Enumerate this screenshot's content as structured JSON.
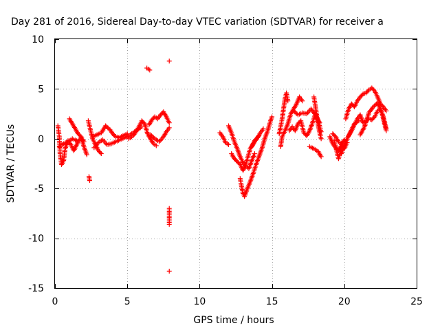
{
  "chart_data": {
    "type": "scatter",
    "title": "Day 281 of 2016, Sidereal Day-to-day VTEC variation (SDTVAR) for receiver a",
    "xlabel": "GPS time / hours",
    "ylabel": "SDTVAR / TECUs",
    "xlim": [
      0,
      25
    ],
    "ylim": [
      -15,
      10
    ],
    "xticks": [
      0,
      5,
      10,
      15,
      20,
      25
    ],
    "yticks": [
      -15,
      -10,
      -5,
      0,
      5,
      10
    ],
    "grid": true,
    "marker": "+",
    "color": "#ff0000",
    "series": [
      {
        "name": "SDTVAR",
        "segments": [
          [
            [
              0.2,
              1.3
            ],
            [
              0.3,
              0.2
            ],
            [
              0.35,
              -1.5
            ],
            [
              0.45,
              -2.6
            ],
            [
              0.6,
              -2.2
            ],
            [
              0.7,
              -1.0
            ],
            [
              0.9,
              -0.2
            ],
            [
              1.1,
              -0.6
            ],
            [
              1.3,
              -1.2
            ],
            [
              1.6,
              -0.3
            ],
            [
              1.8,
              0.1
            ],
            [
              2.0,
              -0.8
            ],
            [
              2.2,
              -1.6
            ]
          ],
          [
            [
              1.0,
              2.0
            ],
            [
              1.2,
              1.5
            ],
            [
              1.4,
              1.0
            ],
            [
              1.6,
              0.5
            ],
            [
              1.8,
              0.2
            ],
            [
              2.0,
              -0.3
            ]
          ],
          [
            [
              0.3,
              -0.8
            ],
            [
              0.6,
              -0.5
            ],
            [
              0.9,
              -0.3
            ],
            [
              1.2,
              0.0
            ],
            [
              1.5,
              -0.2
            ]
          ],
          [
            [
              2.3,
              1.8
            ],
            [
              2.4,
              1.2
            ],
            [
              2.5,
              0.6
            ],
            [
              2.6,
              0.0
            ],
            [
              2.8,
              -0.6
            ],
            [
              3.0,
              -1.2
            ],
            [
              3.2,
              -1.5
            ]
          ],
          [
            [
              2.6,
              0.2
            ],
            [
              2.9,
              0.4
            ],
            [
              3.2,
              0.6
            ],
            [
              3.5,
              1.3
            ],
            [
              3.8,
              0.9
            ],
            [
              4.1,
              0.3
            ],
            [
              4.4,
              0.1
            ],
            [
              4.7,
              0.3
            ],
            [
              5.0,
              0.5
            ]
          ],
          [
            [
              2.7,
              -0.9
            ],
            [
              3.0,
              -0.4
            ],
            [
              3.3,
              -0.1
            ],
            [
              3.6,
              -0.6
            ],
            [
              3.9,
              -0.5
            ],
            [
              4.2,
              -0.3
            ],
            [
              4.5,
              -0.1
            ],
            [
              4.8,
              0.1
            ],
            [
              5.1,
              0.3
            ],
            [
              5.4,
              0.6
            ],
            [
              5.7,
              0.9
            ],
            [
              6.0,
              1.2
            ]
          ],
          [
            [
              5.1,
              0.0
            ],
            [
              5.4,
              0.3
            ],
            [
              5.6,
              0.7
            ],
            [
              5.8,
              1.2
            ],
            [
              6.0,
              1.8
            ],
            [
              6.2,
              1.5
            ],
            [
              6.4,
              0.5
            ],
            [
              6.6,
              0.0
            ],
            [
              6.8,
              -0.5
            ],
            [
              7.0,
              -0.7
            ]
          ],
          [
            [
              6.5,
              1.4
            ],
            [
              6.7,
              1.9
            ],
            [
              6.9,
              2.2
            ],
            [
              7.1,
              2.0
            ],
            [
              7.3,
              2.4
            ],
            [
              7.5,
              2.7
            ],
            [
              7.7,
              2.2
            ],
            [
              7.9,
              1.6
            ]
          ],
          [
            [
              6.6,
              0.4
            ],
            [
              6.9,
              0.0
            ],
            [
              7.2,
              -0.3
            ],
            [
              7.5,
              0.2
            ],
            [
              7.7,
              0.7
            ],
            [
              7.9,
              1.1
            ]
          ],
          [
            [
              2.35,
              -3.8
            ],
            [
              2.4,
              -4.2
            ]
          ],
          [
            [
              6.35,
              7.1
            ],
            [
              6.45,
              7.0
            ],
            [
              6.55,
              6.9
            ]
          ],
          [
            [
              7.9,
              7.8
            ],
            [
              7.9,
              -7.0
            ],
            [
              7.9,
              -8.4
            ],
            [
              7.9,
              -8.6
            ],
            [
              7.9,
              -13.3
            ]
          ],
          [
            [
              11.4,
              0.6
            ],
            [
              11.6,
              0.2
            ],
            [
              11.8,
              -0.4
            ],
            [
              12.0,
              -0.6
            ]
          ],
          [
            [
              12.0,
              1.3
            ],
            [
              12.2,
              0.6
            ],
            [
              12.4,
              -0.3
            ],
            [
              12.6,
              -1.0
            ],
            [
              12.8,
              -1.8
            ],
            [
              13.0,
              -2.4
            ],
            [
              13.2,
              -2.8
            ],
            [
              13.4,
              -3.0
            ],
            [
              13.6,
              -2.2
            ],
            [
              13.8,
              -1.5
            ]
          ],
          [
            [
              12.2,
              -1.5
            ],
            [
              12.4,
              -2.0
            ],
            [
              12.6,
              -2.3
            ],
            [
              12.8,
              -2.6
            ],
            [
              13.0,
              -3.2
            ],
            [
              13.2,
              -2.5
            ],
            [
              13.5,
              -1.0
            ],
            [
              13.8,
              -0.2
            ],
            [
              14.1,
              0.3
            ]
          ],
          [
            [
              12.8,
              -4.0
            ],
            [
              12.9,
              -4.8
            ],
            [
              13.0,
              -5.5
            ],
            [
              13.1,
              -5.8
            ],
            [
              13.3,
              -5.0
            ],
            [
              13.5,
              -4.3
            ],
            [
              13.7,
              -3.5
            ],
            [
              13.9,
              -2.6
            ],
            [
              14.1,
              -1.8
            ],
            [
              14.3,
              -1.0
            ],
            [
              14.5,
              0.0
            ],
            [
              14.7,
              0.8
            ],
            [
              14.9,
              1.8
            ],
            [
              15.0,
              2.2
            ]
          ],
          [
            [
              13.6,
              -0.8
            ],
            [
              13.8,
              -0.3
            ],
            [
              14.0,
              0.1
            ],
            [
              14.2,
              0.6
            ],
            [
              14.4,
              1.0
            ]
          ],
          [
            [
              15.5,
              0.5
            ],
            [
              15.6,
              1.2
            ],
            [
              15.7,
              2.0
            ],
            [
              15.8,
              3.0
            ],
            [
              15.9,
              4.0
            ],
            [
              16.0,
              4.6
            ],
            [
              16.1,
              3.8
            ]
          ],
          [
            [
              15.6,
              -0.8
            ],
            [
              15.7,
              0.2
            ],
            [
              15.9,
              0.8
            ],
            [
              16.1,
              1.5
            ],
            [
              16.3,
              2.5
            ],
            [
              16.5,
              3.0
            ],
            [
              16.7,
              3.5
            ],
            [
              16.9,
              4.2
            ],
            [
              17.1,
              3.8
            ]
          ],
          [
            [
              16.2,
              0.8
            ],
            [
              16.4,
              1.2
            ],
            [
              16.6,
              0.8
            ],
            [
              16.8,
              1.5
            ],
            [
              17.0,
              1.8
            ],
            [
              17.2,
              0.6
            ],
            [
              17.4,
              0.3
            ],
            [
              17.6,
              0.8
            ],
            [
              17.8,
              1.6
            ],
            [
              18.0,
              2.5
            ],
            [
              18.2,
              1.8
            ],
            [
              18.4,
              0.7
            ]
          ],
          [
            [
              16.5,
              2.8
            ],
            [
              16.8,
              2.4
            ],
            [
              17.1,
              2.6
            ],
            [
              17.4,
              2.5
            ],
            [
              17.7,
              3.0
            ],
            [
              18.0,
              2.4
            ],
            [
              18.3,
              1.6
            ]
          ],
          [
            [
              17.9,
              4.2
            ],
            [
              18.0,
              3.3
            ],
            [
              18.1,
              2.3
            ],
            [
              18.2,
              1.3
            ],
            [
              18.3,
              0.6
            ],
            [
              18.4,
              0.0
            ]
          ],
          [
            [
              17.6,
              -0.8
            ],
            [
              17.9,
              -1.0
            ],
            [
              18.2,
              -1.3
            ],
            [
              18.4,
              -1.8
            ]
          ],
          [
            [
              19.0,
              0.2
            ],
            [
              19.2,
              -0.5
            ],
            [
              19.4,
              -0.9
            ],
            [
              19.6,
              -1.2
            ],
            [
              19.8,
              -0.6
            ],
            [
              20.0,
              -0.1
            ]
          ],
          [
            [
              19.2,
              0.5
            ],
            [
              19.4,
              0.2
            ],
            [
              19.6,
              -0.3
            ],
            [
              19.8,
              -0.5
            ],
            [
              20.0,
              -1.0
            ],
            [
              20.2,
              -0.4
            ]
          ],
          [
            [
              19.3,
              -0.2
            ],
            [
              19.5,
              -1.4
            ],
            [
              19.6,
              -2.0
            ],
            [
              19.8,
              -1.0
            ]
          ],
          [
            [
              20.1,
              2.0
            ],
            [
              20.3,
              3.0
            ],
            [
              20.5,
              3.5
            ],
            [
              20.7,
              3.2
            ],
            [
              20.9,
              3.8
            ],
            [
              21.1,
              4.2
            ],
            [
              21.3,
              4.5
            ],
            [
              21.5,
              4.6
            ],
            [
              21.7,
              4.9
            ],
            [
              21.9,
              5.1
            ],
            [
              22.1,
              4.8
            ],
            [
              22.3,
              4.2
            ],
            [
              22.5,
              3.5
            ],
            [
              22.7,
              3.2
            ],
            [
              22.9,
              2.8
            ]
          ],
          [
            [
              20.3,
              0.3
            ],
            [
              20.5,
              0.8
            ],
            [
              20.7,
              1.4
            ],
            [
              20.9,
              2.0
            ],
            [
              21.1,
              2.4
            ],
            [
              21.3,
              1.6
            ],
            [
              21.5,
              1.8
            ],
            [
              21.7,
              2.0
            ],
            [
              21.9,
              1.9
            ],
            [
              22.1,
              2.2
            ],
            [
              22.3,
              2.8
            ],
            [
              22.5,
              3.0
            ],
            [
              22.7,
              2.2
            ],
            [
              22.9,
              1.0
            ]
          ],
          [
            [
              21.1,
              0.4
            ],
            [
              21.4,
              1.2
            ],
            [
              21.7,
              2.6
            ],
            [
              22.0,
              3.2
            ],
            [
              22.3,
              3.6
            ],
            [
              22.6,
              2.6
            ],
            [
              22.9,
              0.8
            ]
          ],
          [
            [
              19.8,
              -1.5
            ],
            [
              20.1,
              -0.3
            ],
            [
              20.4,
              0.6
            ],
            [
              20.7,
              1.5
            ],
            [
              21.0,
              1.8
            ]
          ]
        ]
      }
    ]
  }
}
